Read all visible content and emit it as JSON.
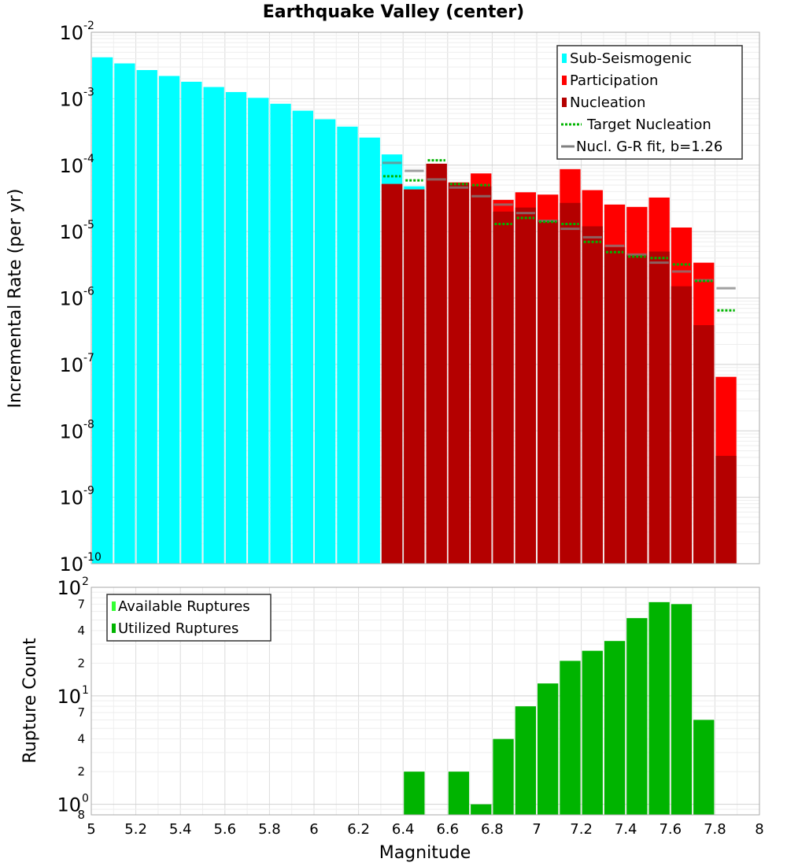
{
  "chart_data": [
    {
      "type": "bar",
      "title": "Earthquake Valley (center)",
      "xlabel": "",
      "ylabel": "Incremental Rate (per yr)",
      "xlim": [
        5,
        8
      ],
      "ylim_exponent": [
        -10,
        -2
      ],
      "yscale": "log",
      "y_tick_exponents": [
        "-10",
        "-9",
        "-8",
        "-7",
        "-6",
        "-5",
        "-4",
        "-3",
        "-2"
      ],
      "bin_width": 0.1,
      "legend_position": "top-right",
      "legend": [
        {
          "label": "Sub-Seismogenic",
          "style": "bar",
          "color": "#00ffff"
        },
        {
          "label": "Participation",
          "style": "bar",
          "color": "#ff0000"
        },
        {
          "label": "Nucleation",
          "style": "bar",
          "color": "#b40000"
        },
        {
          "label": "Target Nucleation",
          "style": "dotted",
          "color": "#00b400"
        },
        {
          "label": "Nucl. G-R fit, b=1.26",
          "style": "line",
          "color": "#808080"
        }
      ],
      "series": [
        {
          "name": "Sub-Seismogenic",
          "color": "#00ffff",
          "x": [
            5.05,
            5.15,
            5.25,
            5.35,
            5.45,
            5.55,
            5.65,
            5.75,
            5.85,
            5.95,
            6.05,
            6.15,
            6.25,
            6.35,
            6.45
          ],
          "values": [
            0.0042,
            0.0034,
            0.0027,
            0.0022,
            0.0018,
            0.0015,
            0.00126,
            0.00103,
            0.00084,
            0.00066,
            0.00049,
            0.00038,
            0.00026,
            0.000145,
            4.8e-05
          ]
        },
        {
          "name": "Participation",
          "color": "#ff0000",
          "x": [
            6.35,
            6.45,
            6.55,
            6.65,
            6.75,
            6.85,
            6.95,
            7.05,
            7.15,
            7.25,
            7.35,
            7.45,
            7.55,
            7.65,
            7.75,
            7.85
          ],
          "values": [
            5.2e-05,
            4.3e-05,
            0.000105,
            5.5e-05,
            7.5e-05,
            3e-05,
            3.9e-05,
            3.6e-05,
            8.7e-05,
            4.2e-05,
            2.55e-05,
            2.35e-05,
            3.25e-05,
            1.15e-05,
            3.4e-06,
            6.5e-08
          ]
        },
        {
          "name": "Nucleation",
          "color": "#b40000",
          "x": [
            6.35,
            6.45,
            6.55,
            6.65,
            6.75,
            6.85,
            6.95,
            7.05,
            7.15,
            7.25,
            7.35,
            7.45,
            7.55,
            7.65,
            7.75,
            7.85
          ],
          "values": [
            5.2e-05,
            4.3e-05,
            0.000105,
            5.4e-05,
            4.8e-05,
            2e-05,
            2.3e-05,
            1.5e-05,
            2.7e-05,
            1.2e-05,
            5.8e-06,
            4.5e-06,
            5e-06,
            1.5e-06,
            3.9e-07,
            4.2e-09
          ]
        },
        {
          "name": "Target Nucleation",
          "color": "#00b400",
          "x": [
            6.35,
            6.45,
            6.55,
            6.65,
            6.75,
            6.85,
            6.95,
            7.05,
            7.15,
            7.25,
            7.35,
            7.45,
            7.55,
            7.65,
            7.75,
            7.85
          ],
          "values": [
            6.8e-05,
            5.9e-05,
            0.000118,
            5.2e-05,
            5e-05,
            1.3e-05,
            1.6e-05,
            1.4e-05,
            1.3e-05,
            7e-06,
            4.9e-06,
            4.2e-06,
            4e-06,
            3.2e-06,
            1.8e-06,
            6.5e-07
          ]
        },
        {
          "name": "Nucl. G-R fit, b=1.26",
          "color": "#808080",
          "x": [
            6.35,
            6.45,
            6.55,
            6.65,
            6.75,
            6.85,
            6.95,
            7.05,
            7.15,
            7.25,
            7.35,
            7.45,
            7.55,
            7.65,
            7.75,
            7.85
          ],
          "values": [
            0.000108,
            8.2e-05,
            6.1e-05,
            4.6e-05,
            3.4e-05,
            2.55e-05,
            1.9e-05,
            1.45e-05,
            1.1e-05,
            8.2e-06,
            6.1e-06,
            4.5e-06,
            3.4e-06,
            2.5e-06,
            1.85e-06,
            1.4e-06
          ]
        }
      ]
    },
    {
      "type": "bar",
      "title": "",
      "xlabel": "Magnitude",
      "ylabel": "Rupture Count",
      "xlim": [
        5,
        8
      ],
      "yscale": "log",
      "ylim": [
        0.8,
        100
      ],
      "x_ticks": [
        "5",
        "5.2",
        "5.4",
        "5.6",
        "5.8",
        "6",
        "6.2",
        "6.4",
        "6.6",
        "6.8",
        "7",
        "7.2",
        "7.4",
        "7.6",
        "7.8",
        "8"
      ],
      "y_major_ticks": [
        {
          "base": "10",
          "exp": "0",
          "value": 1
        },
        {
          "base": "10",
          "exp": "1",
          "value": 10
        },
        {
          "base": "10",
          "exp": "2",
          "value": 100
        }
      ],
      "y_minor_ticks": [
        {
          "label": "8",
          "value": 0.8
        },
        {
          "label": "2",
          "value": 2
        },
        {
          "label": "4",
          "value": 4
        },
        {
          "label": "7",
          "value": 7
        },
        {
          "label": "2",
          "value": 20
        },
        {
          "label": "4",
          "value": 40
        },
        {
          "label": "7",
          "value": 70
        }
      ],
      "bin_width": 0.1,
      "legend_position": "top-left",
      "legend": [
        {
          "label": "Available Ruptures",
          "style": "bar",
          "color": "#33ff33"
        },
        {
          "label": "Utilized Ruptures",
          "style": "bar",
          "color": "#00b400"
        }
      ],
      "series": [
        {
          "name": "Utilized Ruptures",
          "color": "#00b400",
          "x": [
            6.45,
            6.65,
            6.75,
            6.85,
            6.95,
            7.05,
            7.15,
            7.25,
            7.35,
            7.45,
            7.55,
            7.65,
            7.75
          ],
          "values": [
            2,
            2,
            1,
            4,
            8,
            13,
            21,
            26,
            32,
            52,
            73,
            70,
            6
          ]
        }
      ]
    }
  ]
}
